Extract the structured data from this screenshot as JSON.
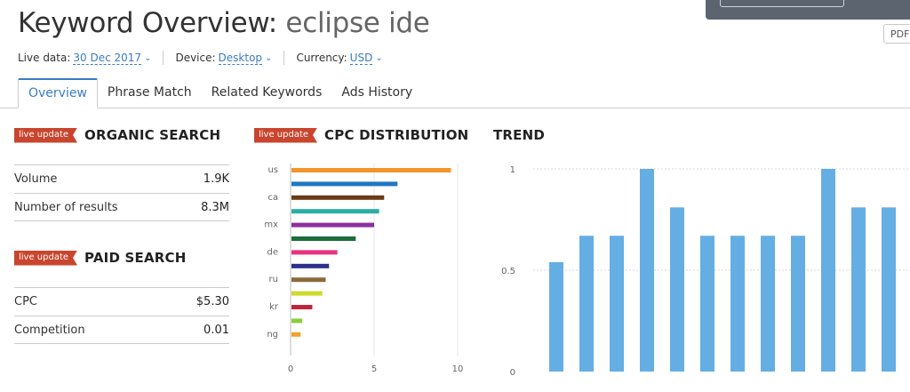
{
  "header": {
    "title_prefix": "Keyword Overview:",
    "keyword": "eclipse ide",
    "pdf_label": "PDF"
  },
  "meta": {
    "live_data_label": "Live data:",
    "live_data_value": "30 Dec 2017",
    "device_label": "Device:",
    "device_value": "Desktop",
    "currency_label": "Currency:",
    "currency_value": "USD"
  },
  "tabs": [
    {
      "label": "Overview",
      "active": true
    },
    {
      "label": "Phrase Match",
      "active": false
    },
    {
      "label": "Related Keywords",
      "active": false
    },
    {
      "label": "Ads History",
      "active": false
    }
  ],
  "badge_label": "live update",
  "organic": {
    "title": "ORGANIC SEARCH",
    "rows": [
      {
        "label": "Volume",
        "value": "1.9K"
      },
      {
        "label": "Number of results",
        "value": "8.3M"
      }
    ]
  },
  "paid": {
    "title": "PAID SEARCH",
    "rows": [
      {
        "label": "CPC",
        "value": "$5.30"
      },
      {
        "label": "Competition",
        "value": "0.01"
      }
    ]
  },
  "cpc_title": "CPC DISTRIBUTION",
  "trend_title": "TREND",
  "chart_data": [
    {
      "type": "bar",
      "orientation": "horizontal",
      "title": "CPC DISTRIBUTION",
      "category_labels_shown": [
        "us",
        "ca",
        "mx",
        "de",
        "ru",
        "kr",
        "ng"
      ],
      "values": [
        9.6,
        6.4,
        5.6,
        5.3,
        5.0,
        3.9,
        2.8,
        2.3,
        2.1,
        1.9,
        1.3,
        0.7,
        0.6
      ],
      "bar_label_every": 2,
      "colors": [
        "#f0952b",
        "#1f78c1",
        "#6b3a16",
        "#2aaea3",
        "#8e2ea0",
        "#1d6e3a",
        "#e8337e",
        "#2a2e8c",
        "#8a6a3c",
        "#cfd92e",
        "#c0263b",
        "#8ccc3d",
        "#f29f2e"
      ],
      "xticks": [
        "0",
        "5",
        "10"
      ],
      "xlim": [
        0,
        10
      ]
    },
    {
      "type": "bar",
      "title": "TREND",
      "values": [
        0.54,
        0.67,
        0.67,
        1.0,
        0.81,
        0.67,
        0.67,
        0.67,
        0.67,
        1.0,
        0.81,
        0.81
      ],
      "yticks": [
        "0",
        "0.5",
        "1"
      ],
      "ylim": [
        0,
        1
      ],
      "color": "#64aee3"
    }
  ]
}
